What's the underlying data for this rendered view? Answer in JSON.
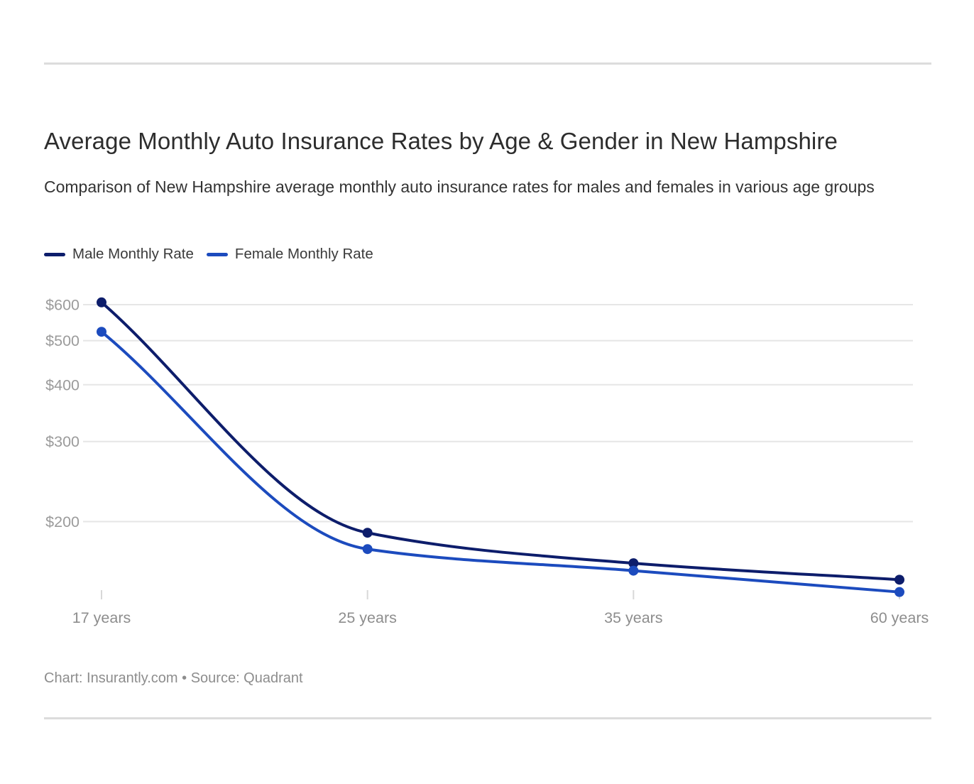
{
  "chart_data": {
    "type": "line",
    "title": "Average Monthly Auto Insurance Rates by Age & Gender in New Hampshire",
    "subtitle": "Comparison of New Hampshire average monthly auto insurance rates for males and females in various age groups",
    "caption": "Chart: Insurantly.com • Source: Quadrant",
    "categories": [
      "17 years",
      "25 years",
      "35 years",
      "60 years"
    ],
    "series": [
      {
        "name": "Male Monthly Rate",
        "color": "#0d1d6b",
        "values": [
          607,
          189,
          162,
          149
        ]
      },
      {
        "name": "Female Monthly Rate",
        "color": "#1c4bbe",
        "values": [
          523,
          174,
          156,
          140
        ]
      }
    ],
    "y_axis": {
      "scale": "log",
      "ticks": [
        600,
        500,
        400,
        300,
        200
      ],
      "tick_prefix": "$"
    },
    "x_axis": {
      "ticks": [
        "17 years",
        "25 years",
        "35 years",
        "60 years"
      ]
    },
    "grid": true,
    "legend_position": "top-left",
    "line_style": "smooth-monotone",
    "point_markers": true
  }
}
